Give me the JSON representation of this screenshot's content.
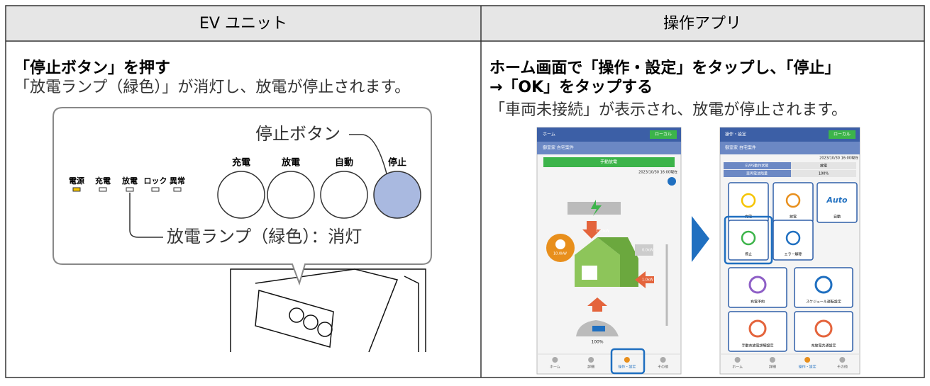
{
  "table": {
    "headers": [
      "EV ユニット",
      "操作アプリ"
    ]
  },
  "left": {
    "heading": "「停止ボタン」を押す",
    "text": "「放電ランプ（緑色）」が消灯し、放電が停止されます。",
    "callout": {
      "button_label": "停止ボタン",
      "buttons": [
        "充電",
        "放電",
        "自動",
        "停止"
      ],
      "lamps": [
        "電源",
        "充電",
        "放電",
        "ロック",
        "異常"
      ],
      "lamp_label": "放電ランプ（緑色）：消灯"
    }
  },
  "right": {
    "heading_lines": [
      "ホーム画面で「操作・設定」をタップし、「停止」",
      "→「OK」をタップする"
    ],
    "text": "「車両未接続」が表示され、放電が停止されます。",
    "phone_home": {
      "title": "ホーム",
      "badge": "ローカル",
      "site": "御室家 自宅案件",
      "mode": "手動放電",
      "date": "2023/10/30 16:00現在",
      "flows": [
        "11.0kW",
        "10.0kW",
        "0.0kW",
        "1.0kW"
      ],
      "battery": "100%",
      "nav": [
        "ホーム",
        "詳細",
        "操作・設定",
        "その他"
      ]
    },
    "phone_settings": {
      "title": "操作・設定",
      "badge": "ローカル",
      "site": "御室家 自宅案件",
      "date": "2023/10/30 16:00現在",
      "status": [
        [
          "EVPS動作状態",
          "放電"
        ],
        [
          "車両電池残量",
          "100%"
        ]
      ],
      "tiles": [
        "充電",
        "放電",
        "自動",
        "停止",
        "エラー解除"
      ],
      "auto_icon": "Auto",
      "big_tiles": [
        "充電予約",
        "スケジュール運転設定",
        "手動充放電詳細設定",
        "充放電共通設定"
      ],
      "nav": [
        "ホーム",
        "詳細",
        "操作・設定",
        "その他"
      ]
    }
  }
}
